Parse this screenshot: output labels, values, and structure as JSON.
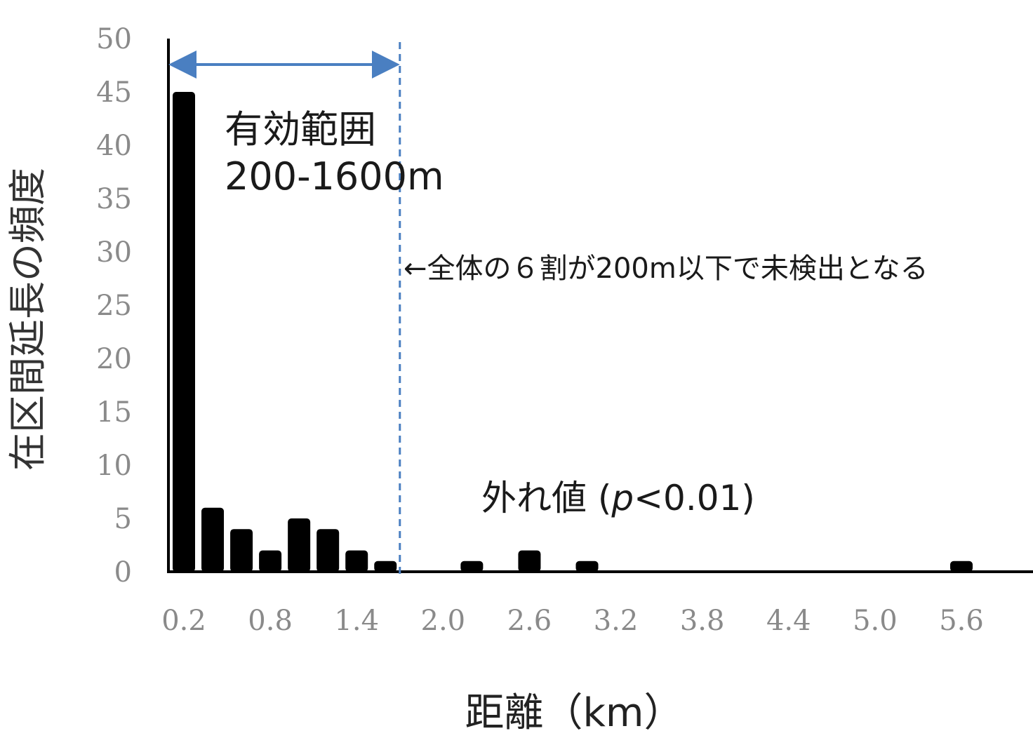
{
  "chart_data": {
    "type": "bar",
    "ylabel": "在区間延長の頻度",
    "xlabel": "距離（km）",
    "ylim": [
      0,
      50
    ],
    "y_ticks": [
      "0",
      "5",
      "10",
      "15",
      "20",
      "25",
      "30",
      "35",
      "40",
      "45",
      "50"
    ],
    "x_ticks": [
      "0.2",
      "0.8",
      "1.4",
      "2.0",
      "2.6",
      "3.2",
      "3.8",
      "4.4",
      "5.0",
      "5.6"
    ],
    "x": [
      0.2,
      0.4,
      0.6,
      0.8,
      1.0,
      1.2,
      1.4,
      1.6,
      2.2,
      2.6,
      3.0,
      5.6
    ],
    "values": [
      45,
      6,
      4,
      2,
      5,
      4,
      2,
      1,
      1,
      2,
      1,
      1
    ],
    "grid": false,
    "colors": {
      "bars": "#000000",
      "range_marker": "#4a7fc1"
    },
    "annotations": {
      "effective_range_title": "有効範囲",
      "effective_range_value": "200-1600m",
      "detection_note": "←全体の６割が200m以下で未検出となる",
      "outlier_prefix": "外れ値 (",
      "outlier_p": "p",
      "outlier_suffix": "<0.01)"
    },
    "range_marker": {
      "from": 0.1,
      "to": 1.7
    }
  }
}
